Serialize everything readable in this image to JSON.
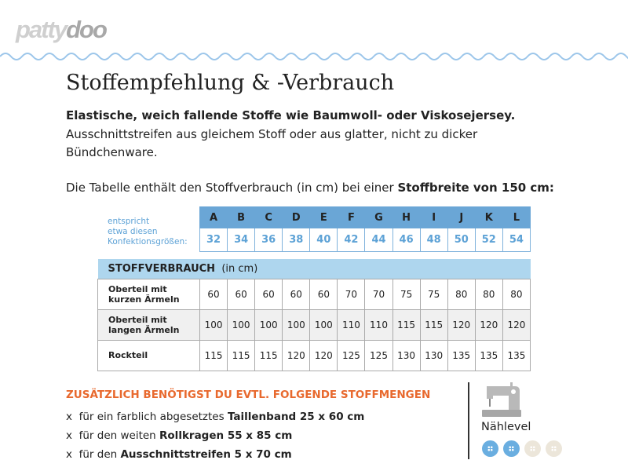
{
  "logo": {
    "part1": "patty",
    "part2": "doo"
  },
  "title": "Stoffempfehlung & -Verbrauch",
  "intro": {
    "bold": "Elastische, weich fallende Stoffe wie Baumwoll- oder Viskosejersey.",
    "text": "Ausschnittstreifen aus gleichem Stoff oder aus glatter, nicht zu dicker Bündchenware."
  },
  "note": {
    "text": "Die Tabelle enthält den Stoffverbrauch (in cm) bei einer ",
    "bold": "Stoffbreite von 150 cm:"
  },
  "sizes": {
    "label": [
      "entspricht",
      "etwa diesen",
      "Konfektionsgrößen:"
    ],
    "letters": [
      "A",
      "B",
      "C",
      "D",
      "E",
      "F",
      "G",
      "H",
      "I",
      "J",
      "K",
      "L"
    ],
    "numbers": [
      "32",
      "34",
      "36",
      "38",
      "40",
      "42",
      "44",
      "46",
      "48",
      "50",
      "52",
      "54"
    ]
  },
  "usage": {
    "header_bold": "STOFFVERBRAUCH",
    "header_unit": "(in cm)",
    "rows": [
      {
        "label": [
          "Oberteil mit",
          "kurzen Ärmeln"
        ],
        "values": [
          "60",
          "60",
          "60",
          "60",
          "60",
          "70",
          "70",
          "75",
          "75",
          "80",
          "80",
          "80"
        ]
      },
      {
        "label": [
          "Oberteil mit",
          "langen Ärmeln"
        ],
        "values": [
          "100",
          "100",
          "100",
          "100",
          "100",
          "110",
          "110",
          "115",
          "115",
          "120",
          "120",
          "120"
        ]
      },
      {
        "label": [
          "Rockteil"
        ],
        "values": [
          "115",
          "115",
          "115",
          "120",
          "120",
          "125",
          "125",
          "130",
          "130",
          "135",
          "135",
          "135"
        ]
      }
    ]
  },
  "extra": {
    "heading": "ZUSÄTZLICH BENÖTIGST DU EVTL. FOLGENDE STOFFMENGEN",
    "items": [
      {
        "bullet": "x",
        "text": "für ein farblich abgesetztes ",
        "bold": "Taillenband 25 x 60 cm"
      },
      {
        "bullet": "x",
        "text": "für den weiten ",
        "bold": "Rollkragen 55 x 85 cm"
      },
      {
        "bullet": "x",
        "text": "für den ",
        "bold": "Ausschnittstreifen 5 x 70 cm"
      }
    ]
  },
  "level": {
    "label": "Nählevel",
    "value": 2,
    "max": 4,
    "icon": "sewing-machine-icon",
    "colors": {
      "on": "#6aaee0",
      "off": "#ece6da"
    }
  },
  "colors": {
    "accent_blue": "#6aa6d6",
    "orange": "#e8692e"
  }
}
